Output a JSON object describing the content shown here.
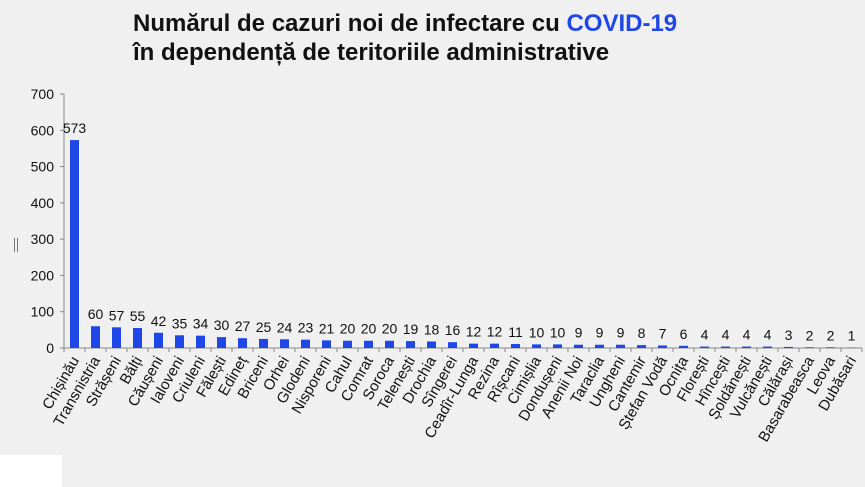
{
  "title": {
    "line1_prefix": "Numărul de cazuri noi de infectare cu ",
    "line1_highlight": "COVID-19",
    "line2": "în dependență de teritoriile administrative"
  },
  "colors": {
    "bar": "#1f47e8",
    "highlight": "#1f47e8",
    "text": "#111111",
    "axis": "#888888",
    "background": "#f0f0f0"
  },
  "chart_data": {
    "type": "bar",
    "categories": [
      "Chișinău",
      "Transnistria",
      "Strășeni",
      "Bălți",
      "Căușeni",
      "Ialoveni",
      "Criuleni",
      "Fălești",
      "Edineț",
      "Briceni",
      "Orhei",
      "Glodeni",
      "Nisporeni",
      "Cahul",
      "Comrat",
      "Soroca",
      "Telenești",
      "Drochia",
      "Sîngerei",
      "Ceadîr-Lunga",
      "Rezina",
      "Rîșcani",
      "Cimișlia",
      "Dondușeni",
      "Anenii Noi",
      "Taraclia",
      "Ungheni",
      "Cantemir",
      "Ștefan Vodă",
      "Ocnița",
      "Florești",
      "Hîncești",
      "Șoldănești",
      "Vulcănești",
      "Călărași",
      "Basarabeasca",
      "Leova",
      "Dubăsari"
    ],
    "values": [
      573,
      60,
      57,
      55,
      42,
      35,
      34,
      30,
      27,
      25,
      24,
      23,
      21,
      20,
      20,
      20,
      19,
      18,
      16,
      12,
      12,
      11,
      10,
      10,
      9,
      9,
      9,
      8,
      7,
      6,
      4,
      4,
      4,
      4,
      3,
      2,
      2,
      1
    ],
    "yticks": [
      0,
      100,
      200,
      300,
      400,
      500,
      600,
      700
    ],
    "ylim": [
      0,
      700
    ],
    "grid": false,
    "legend": "none",
    "data_labels": true
  }
}
